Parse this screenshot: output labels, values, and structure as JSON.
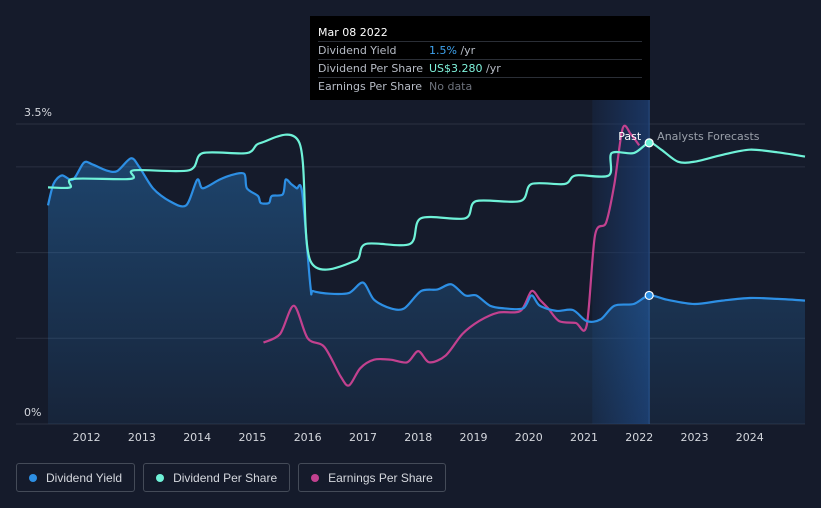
{
  "tooltip": {
    "date": "Mar 08 2022",
    "rows": [
      {
        "label": "Dividend Yield",
        "value": "1.5%",
        "unit": " /yr"
      },
      {
        "label": "Dividend Per Share",
        "value": "US$3.280",
        "unit": " /yr"
      },
      {
        "label": "Earnings Per Share",
        "value": "No data",
        "unit": ""
      }
    ]
  },
  "legend": {
    "yield": "Dividend Yield",
    "dps": "Dividend Per Share",
    "eps": "Earnings Per Share"
  },
  "colors": {
    "background": "#151b2b",
    "yield": "#2d8fe4",
    "dps": "#6ff2d8",
    "eps": "#c2418f",
    "forecast_band": "#1b3a6b"
  },
  "chart_data": {
    "type": "line",
    "title": "",
    "xlabel": "",
    "ylabel": "",
    "y_tick_labels": [
      "3.5%",
      "0%"
    ],
    "ylim": [
      0,
      3.5
    ],
    "x_tick_labels": [
      "2012",
      "2013",
      "2014",
      "2015",
      "2016",
      "2017",
      "2018",
      "2019",
      "2020",
      "2021",
      "2022",
      "2023",
      "2024"
    ],
    "xlim": [
      2011.3,
      2025.0
    ],
    "grid": true,
    "annotations": {
      "past": "Past",
      "forecast": "Analysts Forecasts"
    },
    "past_end": 2022.18,
    "forecast_region_start": 2021.15,
    "series": [
      {
        "name": "Dividend Yield",
        "unit": "%",
        "values": [
          [
            2011.3,
            2.55
          ],
          [
            2011.4,
            2.8
          ],
          [
            2011.55,
            2.9
          ],
          [
            2011.75,
            2.85
          ],
          [
            2011.95,
            3.05
          ],
          [
            2012.1,
            3.03
          ],
          [
            2012.35,
            2.96
          ],
          [
            2012.55,
            2.95
          ],
          [
            2012.8,
            3.1
          ],
          [
            2012.95,
            3.0
          ],
          [
            2013.2,
            2.75
          ],
          [
            2013.5,
            2.6
          ],
          [
            2013.8,
            2.55
          ],
          [
            2014.0,
            2.85
          ],
          [
            2014.1,
            2.75
          ],
          [
            2014.4,
            2.85
          ],
          [
            2014.6,
            2.9
          ],
          [
            2014.85,
            2.92
          ],
          [
            2014.9,
            2.75
          ],
          [
            2015.1,
            2.66
          ],
          [
            2015.15,
            2.58
          ],
          [
            2015.3,
            2.58
          ],
          [
            2015.35,
            2.66
          ],
          [
            2015.55,
            2.68
          ],
          [
            2015.6,
            2.85
          ],
          [
            2015.7,
            2.8
          ],
          [
            2015.8,
            2.75
          ],
          [
            2015.9,
            2.7
          ],
          [
            2016.05,
            1.6
          ],
          [
            2016.1,
            1.55
          ],
          [
            2016.4,
            1.52
          ],
          [
            2016.75,
            1.53
          ],
          [
            2017.0,
            1.65
          ],
          [
            2017.2,
            1.45
          ],
          [
            2017.5,
            1.35
          ],
          [
            2017.75,
            1.35
          ],
          [
            2018.05,
            1.55
          ],
          [
            2018.35,
            1.57
          ],
          [
            2018.6,
            1.63
          ],
          [
            2018.85,
            1.5
          ],
          [
            2019.05,
            1.5
          ],
          [
            2019.3,
            1.38
          ],
          [
            2019.55,
            1.35
          ],
          [
            2019.9,
            1.35
          ],
          [
            2020.05,
            1.5
          ],
          [
            2020.2,
            1.38
          ],
          [
            2020.5,
            1.32
          ],
          [
            2020.8,
            1.33
          ],
          [
            2021.05,
            1.2
          ],
          [
            2021.3,
            1.22
          ],
          [
            2021.55,
            1.38
          ],
          [
            2021.9,
            1.4
          ],
          [
            2022.18,
            1.5
          ],
          [
            2022.5,
            1.45
          ],
          [
            2023.0,
            1.4
          ],
          [
            2023.5,
            1.44
          ],
          [
            2024.0,
            1.47
          ],
          [
            2024.5,
            1.46
          ],
          [
            2025.0,
            1.44
          ]
        ]
      },
      {
        "name": "Dividend Per Share",
        "unit": "US$",
        "values": [
          [
            2011.3,
            2.76
          ],
          [
            2011.7,
            2.76
          ],
          [
            2011.75,
            2.86
          ],
          [
            2012.8,
            2.86
          ],
          [
            2012.85,
            2.96
          ],
          [
            2013.85,
            2.96
          ],
          [
            2014.1,
            3.16
          ],
          [
            2014.9,
            3.16
          ],
          [
            2015.15,
            3.28
          ],
          [
            2015.85,
            3.28
          ],
          [
            2016.05,
            1.9
          ],
          [
            2016.85,
            1.9
          ],
          [
            2017.05,
            2.1
          ],
          [
            2017.85,
            2.1
          ],
          [
            2018.05,
            2.4
          ],
          [
            2018.85,
            2.4
          ],
          [
            2019.05,
            2.6
          ],
          [
            2019.85,
            2.6
          ],
          [
            2020.05,
            2.8
          ],
          [
            2020.65,
            2.8
          ],
          [
            2020.85,
            2.9
          ],
          [
            2021.45,
            2.9
          ],
          [
            2021.5,
            3.16
          ],
          [
            2021.9,
            3.16
          ],
          [
            2022.18,
            3.28
          ],
          [
            2022.4,
            3.2
          ],
          [
            2022.7,
            3.06
          ],
          [
            2023.0,
            3.06
          ],
          [
            2023.5,
            3.14
          ],
          [
            2024.0,
            3.2
          ],
          [
            2024.5,
            3.17
          ],
          [
            2025.0,
            3.12
          ]
        ]
      },
      {
        "name": "Earnings Per Share",
        "unit": "",
        "values": [
          [
            2015.2,
            0.95
          ],
          [
            2015.5,
            1.05
          ],
          [
            2015.75,
            1.38
          ],
          [
            2016.0,
            1.0
          ],
          [
            2016.3,
            0.9
          ],
          [
            2016.6,
            0.55
          ],
          [
            2016.75,
            0.45
          ],
          [
            2016.95,
            0.65
          ],
          [
            2017.2,
            0.75
          ],
          [
            2017.5,
            0.75
          ],
          [
            2017.8,
            0.72
          ],
          [
            2018.0,
            0.85
          ],
          [
            2018.2,
            0.72
          ],
          [
            2018.5,
            0.8
          ],
          [
            2018.8,
            1.05
          ],
          [
            2019.1,
            1.2
          ],
          [
            2019.45,
            1.3
          ],
          [
            2019.85,
            1.32
          ],
          [
            2020.05,
            1.55
          ],
          [
            2020.2,
            1.45
          ],
          [
            2020.35,
            1.35
          ],
          [
            2020.55,
            1.2
          ],
          [
            2020.85,
            1.18
          ],
          [
            2021.05,
            1.15
          ],
          [
            2021.2,
            2.2
          ],
          [
            2021.4,
            2.35
          ],
          [
            2021.55,
            2.8
          ],
          [
            2021.7,
            3.45
          ],
          [
            2021.85,
            3.38
          ],
          [
            2022.0,
            3.25
          ]
        ]
      }
    ]
  }
}
